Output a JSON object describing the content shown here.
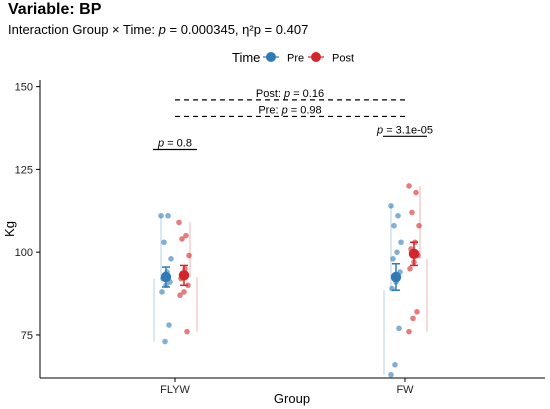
{
  "title": "Variable: BP",
  "subtitle": {
    "prefix": "Interaction Group × Time: ",
    "p_symbol": "p",
    "p_value": " = 0.000345, ",
    "eta": "η²p = 0.407"
  },
  "colors": {
    "pre": "#2e7ab6",
    "post": "#d3262b",
    "axis": "#000000",
    "bracket": "#000000"
  },
  "chart_data": {
    "type": "scatter",
    "title": "Variable: BP",
    "xlabel": "Group",
    "ylabel": "Kg",
    "categories": [
      "FLYW",
      "FW"
    ],
    "ylim": [
      62,
      152
    ],
    "yticks": [
      75,
      100,
      125,
      150
    ],
    "grid": false,
    "legend": {
      "title": "Time",
      "position": "top",
      "entries": [
        "Pre",
        "Post"
      ]
    },
    "series": [
      {
        "name": "Pre",
        "color": "#2e7ab6",
        "means": [
          92.5,
          92.5
        ],
        "ci": [
          [
            89.5,
            95.5
          ],
          [
            88.5,
            96.5
          ]
        ],
        "points": [
          [
            111,
            111,
            103,
            98,
            94,
            92,
            91,
            90,
            88,
            78,
            73
          ],
          [
            114,
            111,
            108,
            103,
            100,
            98,
            94,
            91,
            89,
            77,
            66,
            63
          ]
        ]
      },
      {
        "name": "Post",
        "color": "#d3262b",
        "means": [
          93,
          99.5
        ],
        "ci": [
          [
            90,
            96
          ],
          [
            96,
            103
          ]
        ],
        "points": [
          [
            109,
            105,
            104,
            99,
            95,
            92,
            90,
            88,
            87,
            76
          ],
          [
            120,
            118,
            112,
            108,
            103,
            101,
            99,
            97,
            95,
            82,
            80,
            76
          ]
        ]
      }
    ],
    "annotations": [
      {
        "label_prefix": "",
        "p_symbol": "p",
        "text": " = 0.8",
        "y": 131,
        "x1": 0,
        "x2": 1,
        "group": 0
      },
      {
        "label_prefix": "",
        "p_symbol": "p",
        "text": " = 3.1e-05",
        "y": 135,
        "x1": 0,
        "x2": 1,
        "group": 1
      },
      {
        "label_prefix": "Post: ",
        "p_symbol": "p",
        "text": " = 0.16",
        "y": 146,
        "dashed": true
      },
      {
        "label_prefix": "Pre: ",
        "p_symbol": "p",
        "text": " = 0.98",
        "y": 141,
        "dashed": true
      }
    ]
  }
}
